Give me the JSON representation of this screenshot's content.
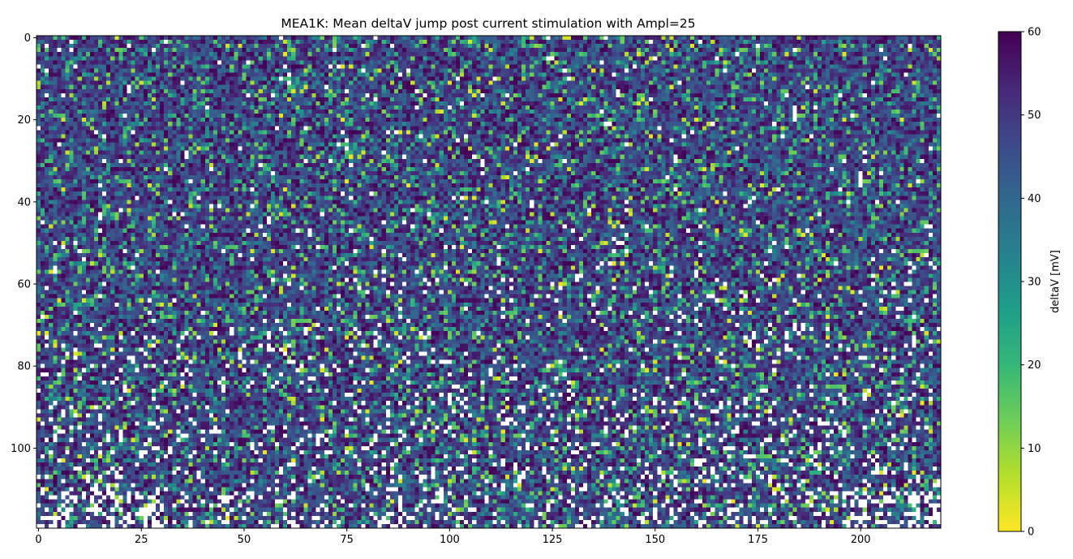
{
  "chart_data": {
    "type": "heatmap",
    "title": "MEA1K: Mean deltaV jump post current stimulation with Ampl=25",
    "xlabel": "",
    "ylabel": "",
    "grid": false,
    "n_cols": 220,
    "n_rows": 120,
    "x_ticks": [
      0,
      25,
      50,
      75,
      100,
      125,
      150,
      175,
      200
    ],
    "y_ticks": [
      0,
      20,
      40,
      60,
      80,
      100
    ],
    "y_inverted": true,
    "colormap": "viridis_r",
    "nan_color": "#ffffff",
    "value_distribution": {
      "typical_range": [
        40,
        60
      ],
      "green_cell_fraction": 0.12,
      "yellow_cell_fraction": 0.02,
      "missing_cell_fraction_top": 0.02,
      "missing_cell_fraction_bottom": 0.16
    },
    "colorbar": {
      "label": "deltaV [mV]",
      "vmin": 0,
      "vmax": 60,
      "ticks": [
        0,
        10,
        20,
        30,
        40,
        50,
        60
      ]
    }
  }
}
